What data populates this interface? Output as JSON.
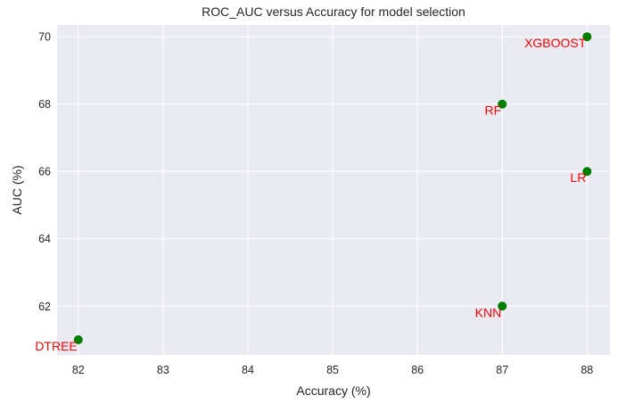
{
  "colors": {
    "background": "#eaeaf2",
    "grid": "#ffffff",
    "marker": "#008000",
    "annotation": "#ff0000",
    "text": "#262626"
  },
  "chart_data": {
    "type": "scatter",
    "title": "ROC_AUC versus Accuracy for model selection",
    "xlabel": "Accuracy (%)",
    "ylabel": "AUC (%)",
    "xlim": [
      81.75,
      88.27
    ],
    "ylim": [
      60.55,
      70.35
    ],
    "xticks": [
      82,
      83,
      84,
      85,
      86,
      87,
      88
    ],
    "yticks": [
      62,
      64,
      66,
      68,
      70
    ],
    "grid": true,
    "legend": "none",
    "points": [
      {
        "label": "XGBOOST",
        "x": 88,
        "y": 70
      },
      {
        "label": "RF",
        "x": 87,
        "y": 68
      },
      {
        "label": "LR",
        "x": 88,
        "y": 66
      },
      {
        "label": "KNN",
        "x": 87,
        "y": 62
      },
      {
        "label": "DTREE",
        "x": 82,
        "y": 61
      }
    ]
  }
}
